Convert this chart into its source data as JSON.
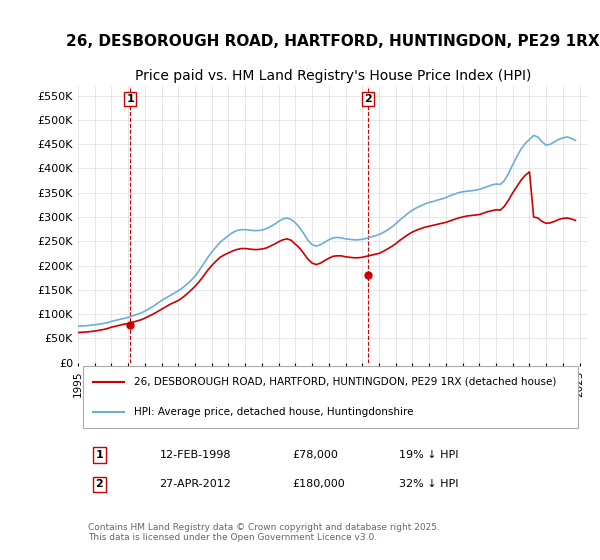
{
  "title": "26, DESBOROUGH ROAD, HARTFORD, HUNTINGDON, PE29 1RX",
  "subtitle": "Price paid vs. HM Land Registry's House Price Index (HPI)",
  "title_fontsize": 11,
  "subtitle_fontsize": 10,
  "background_color": "#ffffff",
  "plot_bg_color": "#ffffff",
  "grid_color": "#dddddd",
  "legend_label_red": "26, DESBOROUGH ROAD, HARTFORD, HUNTINGDON, PE29 1RX (detached house)",
  "legend_label_blue": "HPI: Average price, detached house, Huntingdonshire",
  "red_color": "#cc0000",
  "blue_color": "#6baed6",
  "ylabel": "",
  "ylim": [
    0,
    570000
  ],
  "yticks": [
    0,
    50000,
    100000,
    150000,
    200000,
    250000,
    300000,
    350000,
    400000,
    450000,
    500000,
    550000
  ],
  "ytick_labels": [
    "£0",
    "£50K",
    "£100K",
    "£150K",
    "£200K",
    "£250K",
    "£300K",
    "£350K",
    "£400K",
    "£450K",
    "£500K",
    "£550K"
  ],
  "marker1_date": 1998.12,
  "marker1_price": 78000,
  "marker1_label": "1",
  "marker2_date": 2012.32,
  "marker2_price": 180000,
  "marker2_label": "2",
  "table_rows": [
    [
      "1",
      "12-FEB-1998",
      "£78,000",
      "19% ↓ HPI"
    ],
    [
      "2",
      "27-APR-2012",
      "£180,000",
      "32% ↓ HPI"
    ]
  ],
  "footer_text": "Contains HM Land Registry data © Crown copyright and database right 2025.\nThis data is licensed under the Open Government Licence v3.0.",
  "hpi_data": {
    "years": [
      1995.0,
      1995.25,
      1995.5,
      1995.75,
      1996.0,
      1996.25,
      1996.5,
      1996.75,
      1997.0,
      1997.25,
      1997.5,
      1997.75,
      1998.0,
      1998.25,
      1998.5,
      1998.75,
      1999.0,
      1999.25,
      1999.5,
      1999.75,
      2000.0,
      2000.25,
      2000.5,
      2000.75,
      2001.0,
      2001.25,
      2001.5,
      2001.75,
      2002.0,
      2002.25,
      2002.5,
      2002.75,
      2003.0,
      2003.25,
      2003.5,
      2003.75,
      2004.0,
      2004.25,
      2004.5,
      2004.75,
      2005.0,
      2005.25,
      2005.5,
      2005.75,
      2006.0,
      2006.25,
      2006.5,
      2006.75,
      2007.0,
      2007.25,
      2007.5,
      2007.75,
      2008.0,
      2008.25,
      2008.5,
      2008.75,
      2009.0,
      2009.25,
      2009.5,
      2009.75,
      2010.0,
      2010.25,
      2010.5,
      2010.75,
      2011.0,
      2011.25,
      2011.5,
      2011.75,
      2012.0,
      2012.25,
      2012.5,
      2012.75,
      2013.0,
      2013.25,
      2013.5,
      2013.75,
      2014.0,
      2014.25,
      2014.5,
      2014.75,
      2015.0,
      2015.25,
      2015.5,
      2015.75,
      2016.0,
      2016.25,
      2016.5,
      2016.75,
      2017.0,
      2017.25,
      2017.5,
      2017.75,
      2018.0,
      2018.25,
      2018.5,
      2018.75,
      2019.0,
      2019.25,
      2019.5,
      2019.75,
      2020.0,
      2020.25,
      2020.5,
      2020.75,
      2021.0,
      2021.25,
      2021.5,
      2021.75,
      2022.0,
      2022.25,
      2022.5,
      2022.75,
      2023.0,
      2023.25,
      2023.5,
      2023.75,
      2024.0,
      2024.25,
      2024.5,
      2024.75
    ],
    "values": [
      75000,
      75500,
      76000,
      77000,
      78000,
      79000,
      80500,
      82000,
      85000,
      87000,
      89000,
      91000,
      93000,
      96000,
      99000,
      102000,
      106000,
      111000,
      116000,
      122000,
      128000,
      133000,
      138000,
      143000,
      148000,
      154000,
      161000,
      169000,
      178000,
      190000,
      203000,
      216000,
      228000,
      238000,
      248000,
      255000,
      262000,
      268000,
      272000,
      274000,
      274000,
      273000,
      272000,
      272000,
      273000,
      276000,
      280000,
      285000,
      291000,
      296000,
      298000,
      295000,
      288000,
      278000,
      266000,
      252000,
      243000,
      240000,
      243000,
      248000,
      253000,
      257000,
      258000,
      257000,
      255000,
      254000,
      253000,
      253000,
      254000,
      256000,
      259000,
      261000,
      264000,
      268000,
      273000,
      279000,
      286000,
      294000,
      301000,
      308000,
      314000,
      319000,
      323000,
      327000,
      330000,
      332000,
      335000,
      337000,
      340000,
      344000,
      347000,
      350000,
      352000,
      353000,
      354000,
      355000,
      357000,
      360000,
      363000,
      366000,
      368000,
      367000,
      375000,
      390000,
      408000,
      425000,
      440000,
      452000,
      460000,
      468000,
      465000,
      455000,
      448000,
      450000,
      455000,
      460000,
      463000,
      465000,
      462000,
      458000
    ]
  },
  "price_data": {
    "years": [
      1995.0,
      1995.25,
      1995.5,
      1995.75,
      1996.0,
      1996.25,
      1996.5,
      1996.75,
      1997.0,
      1997.25,
      1997.5,
      1997.75,
      1998.0,
      1998.25,
      1998.5,
      1998.75,
      1999.0,
      1999.25,
      1999.5,
      1999.75,
      2000.0,
      2000.25,
      2000.5,
      2000.75,
      2001.0,
      2001.25,
      2001.5,
      2001.75,
      2002.0,
      2002.25,
      2002.5,
      2002.75,
      2003.0,
      2003.25,
      2003.5,
      2003.75,
      2004.0,
      2004.25,
      2004.5,
      2004.75,
      2005.0,
      2005.25,
      2005.5,
      2005.75,
      2006.0,
      2006.25,
      2006.5,
      2006.75,
      2007.0,
      2007.25,
      2007.5,
      2007.75,
      2008.0,
      2008.25,
      2008.5,
      2008.75,
      2009.0,
      2009.25,
      2009.5,
      2009.75,
      2010.0,
      2010.25,
      2010.5,
      2010.75,
      2011.0,
      2011.25,
      2011.5,
      2011.75,
      2012.0,
      2012.25,
      2012.5,
      2012.75,
      2013.0,
      2013.25,
      2013.5,
      2013.75,
      2014.0,
      2014.25,
      2014.5,
      2014.75,
      2015.0,
      2015.25,
      2015.5,
      2015.75,
      2016.0,
      2016.25,
      2016.5,
      2016.75,
      2017.0,
      2017.25,
      2017.5,
      2017.75,
      2018.0,
      2018.25,
      2018.5,
      2018.75,
      2019.0,
      2019.25,
      2019.5,
      2019.75,
      2020.0,
      2020.25,
      2020.5,
      2020.75,
      2021.0,
      2021.25,
      2021.5,
      2021.75,
      2022.0,
      2022.25,
      2022.5,
      2022.75,
      2023.0,
      2023.25,
      2023.5,
      2023.75,
      2024.0,
      2024.25,
      2024.5,
      2024.75
    ],
    "values": [
      62000,
      62500,
      63000,
      64000,
      65000,
      66500,
      68000,
      70000,
      73000,
      75000,
      77000,
      79000,
      80500,
      83000,
      85500,
      88000,
      91500,
      96000,
      100000,
      105000,
      110000,
      115000,
      120000,
      124000,
      128000,
      134000,
      141000,
      149000,
      157000,
      167000,
      178000,
      190000,
      200000,
      209000,
      217000,
      222000,
      226000,
      230000,
      233000,
      235000,
      235000,
      234000,
      233000,
      233000,
      234000,
      236000,
      240000,
      244000,
      249000,
      253000,
      255000,
      252000,
      244000,
      236000,
      225000,
      213000,
      205000,
      202000,
      205000,
      210000,
      215000,
      219000,
      220000,
      220000,
      218000,
      217000,
      216000,
      216000,
      217000,
      219000,
      221000,
      223000,
      225000,
      229000,
      234000,
      239000,
      245000,
      252000,
      258000,
      264000,
      269000,
      273000,
      276000,
      279000,
      281000,
      283000,
      285000,
      287000,
      289000,
      292000,
      295000,
      298000,
      300000,
      302000,
      303000,
      304000,
      305000,
      308000,
      311000,
      313000,
      315000,
      314000,
      322000,
      335000,
      350000,
      363000,
      376000,
      386000,
      393000,
      300000,
      298000,
      291000,
      287000,
      288000,
      291000,
      295000,
      297000,
      298000,
      296000,
      293000
    ]
  }
}
